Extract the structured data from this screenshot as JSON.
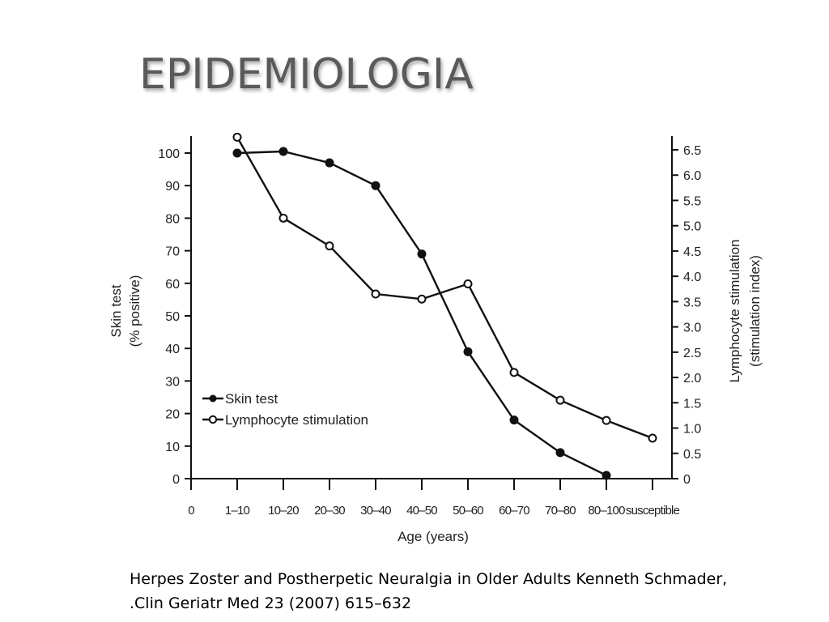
{
  "slide": {
    "title": "EPIDEMIOLOGIA",
    "caption_line1": "Herpes Zoster and Postherpetic Neuralgia in Older Adults Kenneth Schmader,",
    "caption_line2": ".Clin Geriatr Med 23 (2007) 615–632"
  },
  "chart_data": {
    "type": "line",
    "xlabel": "Age (years)",
    "ylabel": "Skin test",
    "ylabel_sub": "(% positive)",
    "y2label": "Lymphocyte stimulation",
    "y2label_sub": "(stimulation index)",
    "categories": [
      "0",
      "1–10",
      "10–20",
      "20–30",
      "30–40",
      "40–50",
      "50–60",
      "60–70",
      "70–80",
      "80–100",
      "susceptible"
    ],
    "ylim": [
      0,
      100
    ],
    "y_ticks": [
      0,
      10,
      20,
      30,
      40,
      50,
      60,
      70,
      80,
      90,
      100
    ],
    "y2lim": [
      0,
      6.5
    ],
    "y2_ticks": [
      0,
      0.5,
      1.0,
      1.5,
      2.0,
      2.5,
      3.0,
      3.5,
      4.0,
      4.5,
      5.0,
      5.5,
      6.0,
      6.5
    ],
    "y2_tick_labels": [
      "0",
      "0.5",
      "1.0",
      "1.5",
      "2.0",
      "2.5",
      "3.0",
      "3.5",
      "4.0",
      "4.5",
      "5.0",
      "5.5",
      "6.0",
      "6.5"
    ],
    "grid": false,
    "legend_position": "bottom-left",
    "series": [
      {
        "name": "Skin test",
        "axis": "left",
        "marker": "filled",
        "x": [
          "1–10",
          "10–20",
          "20–30",
          "30–40",
          "40–50",
          "50–60",
          "60–70",
          "70–80",
          "80–100"
        ],
        "values": [
          100,
          100.5,
          97,
          90,
          69,
          39,
          18,
          8,
          1
        ]
      },
      {
        "name": "Lymphocyte stimulation",
        "axis": "right",
        "marker": "open",
        "x": [
          "1–10",
          "10–20",
          "20–30",
          "30–40",
          "40–50",
          "50–60",
          "60–70",
          "70–80",
          "80–100",
          "susceptible"
        ],
        "values": [
          6.75,
          5.15,
          4.6,
          3.65,
          3.55,
          3.85,
          2.1,
          1.55,
          1.15,
          0.8
        ]
      }
    ]
  }
}
